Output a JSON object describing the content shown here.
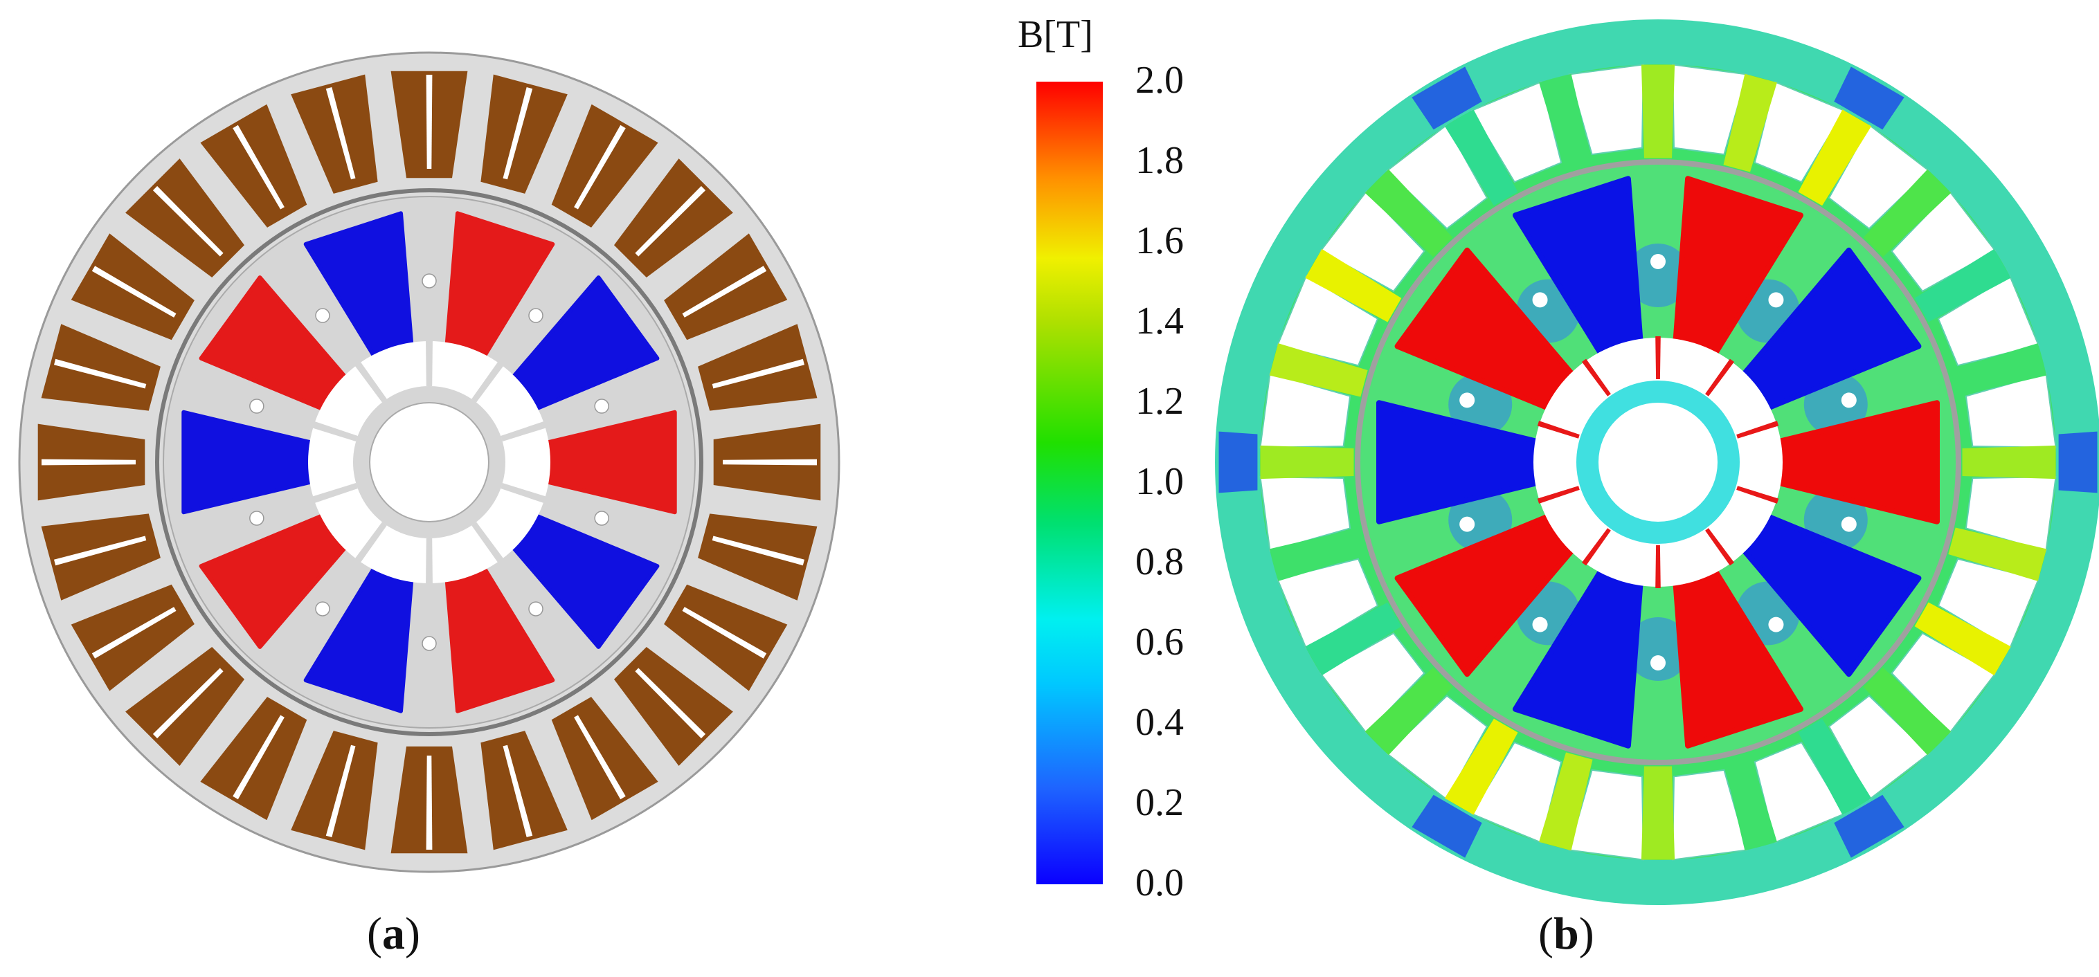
{
  "panels": {
    "a": {
      "label": "a"
    },
    "b": {
      "label": "b"
    }
  },
  "colorbar": {
    "title": "B[T]",
    "ticks": [
      "2.0",
      "1.8",
      "1.6",
      "1.4",
      "1.2",
      "1.0",
      "0.8",
      "0.6",
      "0.4",
      "0.2",
      "0.0"
    ],
    "min": 0.0,
    "max": 2.0
  },
  "machine": {
    "stator_slots": 24,
    "rotor_poles": 10,
    "colors": {
      "steel": "#dcdcdc",
      "winding": "#8b4a12",
      "magnet_north": "#e41a1a",
      "magnet_south": "#1010e0",
      "outline": "#888888"
    }
  }
}
